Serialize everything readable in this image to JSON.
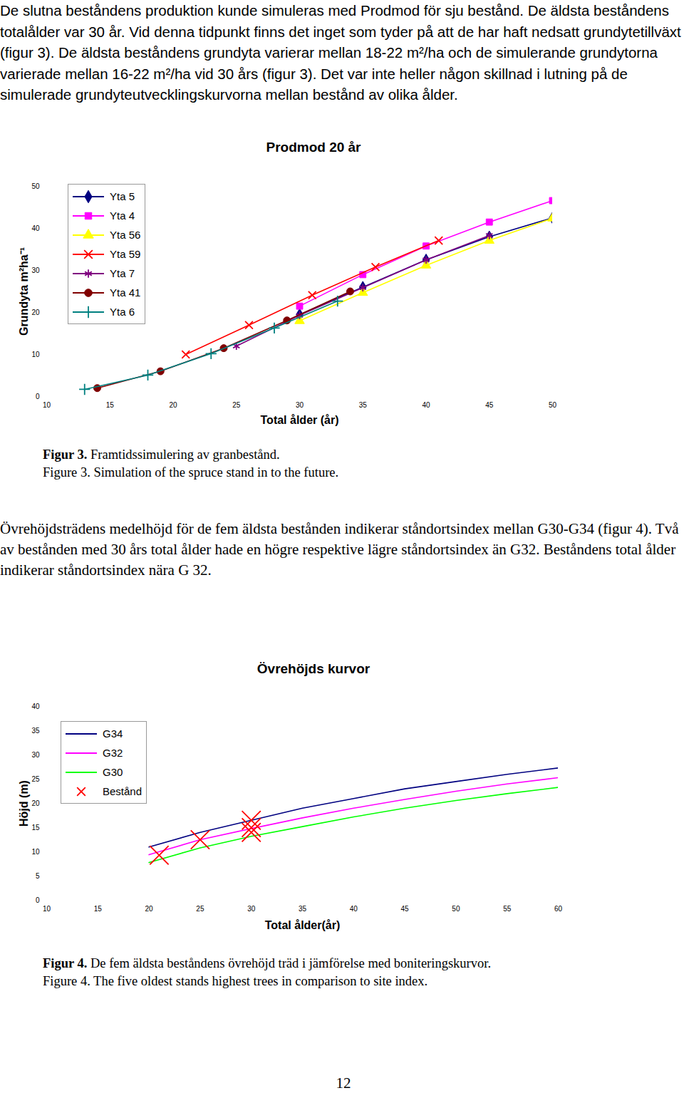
{
  "page": {
    "paragraphs": [
      "De slutna beståndens produktion kunde simuleras med Prodmod för sju bestånd. De äldsta beståndens totalålder var 30 år. Vid denna tidpunkt finns det inget som tyder på att de har haft nedsatt grundytetillväxt (figur 3). De äldsta beståndens grundyta varierar mellan 18-22 m²/ha och de simulerande grundytorna varierade mellan 16-22 m²/ha vid 30 års (figur 3). Det var inte heller någon skillnad i lutning på de simulerade grundyteutvecklingskurvorna mellan bestånd av olika ålder.",
      "Övrehöjdsträdens medelhöjd för de fem äldsta bestånden indikerar ståndortsindex mellan G30-G34 (figur 4). Två av bestånden med 30 års total ålder hade en högre respektive lägre ståndortsindex än G32. Beståndens total ålder indikerar ståndortsindex nära G 32."
    ],
    "captions": [
      [
        {
          "bold": "Figur 3.",
          "text": " Framtidssimulering av granbestånd."
        },
        "Figure 3. Simulation of the spruce stand in to the future."
      ],
      [
        {
          "bold": "Figur 4.",
          "text": " De fem äldsta beståndens övrehöjd träd i jämförelse med boniteringskurvor."
        },
        "Figure 4. The five oldest stands highest trees in comparison to site index."
      ]
    ],
    "page_number": "12"
  },
  "chart_data": [
    {
      "type": "line",
      "title": "Prodmod 20 år",
      "x_label": "Total ålder (år)",
      "y_label": "Grundyta m²ha⁻¹",
      "xlim": [
        10,
        50
      ],
      "xticks": [
        10,
        15,
        20,
        25,
        30,
        35,
        40,
        45,
        50
      ],
      "ylim": [
        0,
        50
      ],
      "yticks": [
        0,
        10,
        20,
        30,
        40,
        50
      ],
      "legend": "upper left",
      "series": [
        {
          "name": "Yta 5",
          "color": "#000080",
          "marker": "diamond",
          "x": [
            30,
            35,
            40,
            45,
            50
          ],
          "values": [
            19.5,
            26,
            32.5,
            38,
            42.5
          ]
        },
        {
          "name": "Yta 4",
          "color": "#ff00ff",
          "marker": "square",
          "x": [
            30,
            35,
            40,
            45,
            50
          ],
          "values": [
            21.5,
            29,
            35.8,
            41.5,
            46.6
          ]
        },
        {
          "name": "Yta 56",
          "color": "#ffff00",
          "marker": "triangle",
          "x": [
            30,
            35,
            40,
            45,
            50
          ],
          "values": [
            18,
            24.7,
            31.2,
            37.1,
            42.4
          ]
        },
        {
          "name": "Yta 59",
          "color": "#ff0000",
          "marker": "times",
          "x": [
            21,
            26,
            31,
            36,
            41
          ],
          "values": [
            10,
            17,
            24.1,
            30.8,
            37.1
          ]
        },
        {
          "name": "Yta 7",
          "color": "#800080",
          "marker": "asterisk",
          "x": [
            25,
            30,
            35,
            40,
            45
          ],
          "values": [
            12,
            19.3,
            25.9,
            32.5,
            38.3
          ]
        },
        {
          "name": "Yta 41",
          "color": "#800000",
          "marker": "circle",
          "x": [
            14,
            19,
            24,
            29,
            34
          ],
          "values": [
            2,
            6,
            11.5,
            18.1,
            25
          ]
        },
        {
          "name": "Yta 6",
          "color": "#008080",
          "marker": "plus",
          "x": [
            13,
            18,
            23,
            28,
            33
          ],
          "values": [
            1.7,
            5.1,
            10.2,
            16.3,
            22.7
          ]
        }
      ]
    },
    {
      "type": "line",
      "title": "Övrehöjds kurvor",
      "x_label": "Total ålder(år)",
      "y_label": "Höjd (m)",
      "xlim": [
        10,
        60
      ],
      "xticks": [
        10,
        15,
        20,
        25,
        30,
        35,
        40,
        45,
        50,
        55,
        60
      ],
      "ylim": [
        0,
        40
      ],
      "yticks": [
        0,
        5,
        10,
        15,
        20,
        25,
        30,
        35,
        40
      ],
      "legend": "upper left",
      "series": [
        {
          "name": "G34",
          "color": "#000080",
          "x": [
            20,
            25,
            30,
            35,
            40,
            45,
            50,
            55,
            60
          ],
          "values": [
            11,
            14,
            16.5,
            19,
            21,
            23,
            24.5,
            26,
            27.3
          ]
        },
        {
          "name": "G32",
          "color": "#ff00ff",
          "x": [
            20,
            25,
            30,
            35,
            40,
            45,
            50,
            55,
            60
          ],
          "values": [
            9.4,
            12.5,
            14.8,
            17,
            19,
            20.8,
            22.5,
            24,
            25.3
          ]
        },
        {
          "name": "G30",
          "color": "#00ff00",
          "x": [
            20,
            25,
            30,
            35,
            40,
            45,
            50,
            55,
            60
          ],
          "values": [
            7.8,
            10.8,
            13.2,
            15.2,
            17.2,
            19,
            20.6,
            22,
            23.3
          ]
        },
        {
          "name": "Bestånd",
          "color": "#ff0000",
          "type": "scatter",
          "marker": "times",
          "x": [
            21,
            25,
            30,
            30,
            30
          ],
          "values": [
            9.3,
            12.5,
            16.5,
            15,
            14
          ]
        }
      ]
    }
  ]
}
